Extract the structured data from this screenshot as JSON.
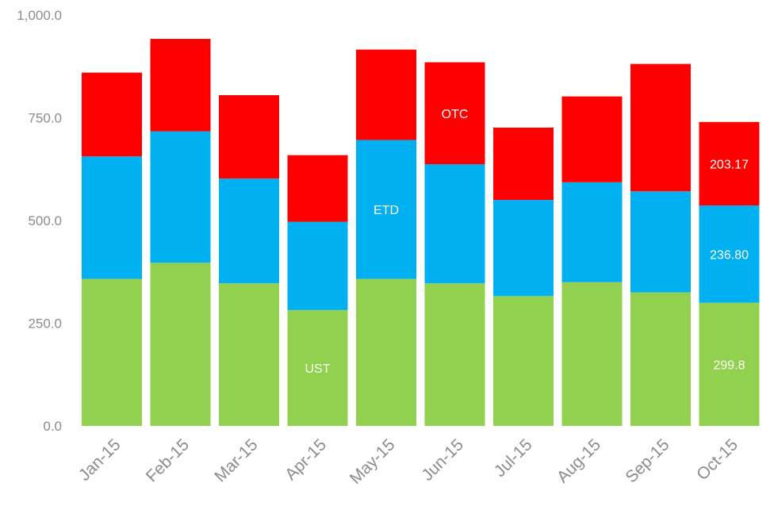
{
  "chart_data": {
    "type": "bar",
    "stacked": true,
    "categories": [
      "Jan-15",
      "Feb-15",
      "Mar-15",
      "Apr-15",
      "May-15",
      "Jun-15",
      "Jul-15",
      "Aug-15",
      "Sep-15",
      "Oct-15"
    ],
    "series": [
      {
        "name": "UST",
        "color": "#92d050",
        "values": [
          358,
          397,
          347,
          282,
          358,
          347,
          316,
          350,
          325,
          299.8
        ]
      },
      {
        "name": "ETD",
        "color": "#00b0f0",
        "values": [
          298,
          320,
          255,
          215,
          338,
          290,
          234,
          243,
          246,
          236.8
        ]
      },
      {
        "name": "OTC",
        "color": "#ff0000",
        "values": [
          204,
          225,
          203,
          162,
          220,
          248,
          176,
          209,
          310,
          203.17
        ]
      }
    ],
    "y_ticks": [
      "0.0",
      "250.0",
      "500.0",
      "750.0",
      "1,000.0"
    ],
    "y_tick_values": [
      0,
      250,
      500,
      750,
      1000
    ],
    "ylim": [
      0,
      1000
    ],
    "data_labels": [
      {
        "category": "Oct-15",
        "series": "UST",
        "text": "299.8"
      },
      {
        "category": "Oct-15",
        "series": "ETD",
        "text": "236.80"
      },
      {
        "category": "Oct-15",
        "series": "OTC",
        "text": "203.17"
      }
    ],
    "series_labels": [
      {
        "category": "Apr-15",
        "series": "UST",
        "text": "UST"
      },
      {
        "category": "May-15",
        "series": "ETD",
        "text": "ETD"
      },
      {
        "category": "Jun-15",
        "series": "OTC",
        "text": "OTC"
      }
    ],
    "grid": false,
    "legend": "none"
  }
}
